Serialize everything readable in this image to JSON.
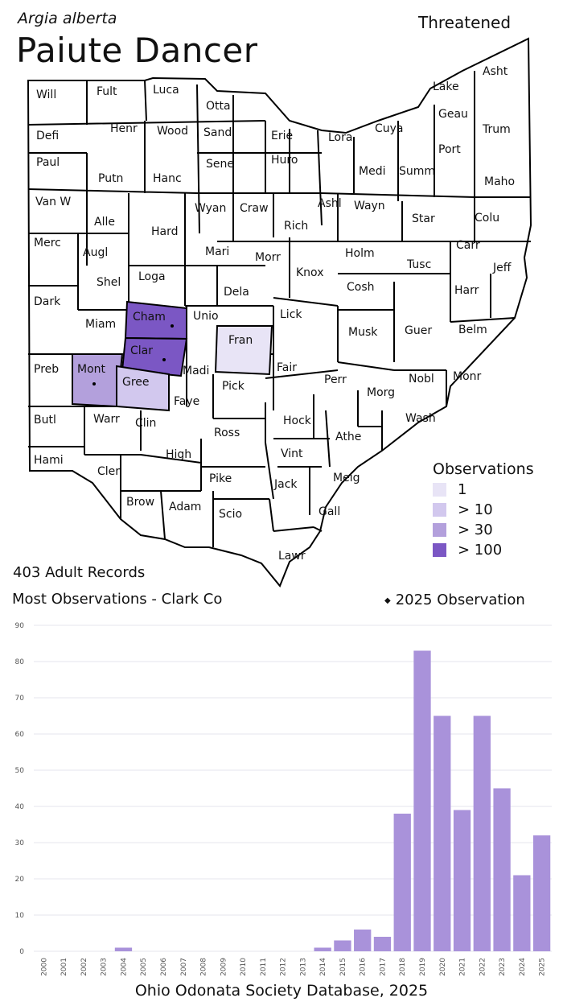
{
  "header": {
    "scientific_name": "Argia alberta",
    "common_name": "Paiute Dancer",
    "status": "Threatened"
  },
  "legend": {
    "title": "Observations",
    "items": [
      {
        "label": "1",
        "color": "#e8e4f6"
      },
      {
        "label": "> 10",
        "color": "#d2c8ee"
      },
      {
        "label": "> 30",
        "color": "#b3a0dc"
      },
      {
        "label": "> 100",
        "color": "#7b57c4"
      }
    ],
    "marker_label": "2025  Observation"
  },
  "summary": {
    "records": "403 Adult Records",
    "most": "Most Observations - Clark Co"
  },
  "counties": [
    {
      "name": "Will",
      "level": 0
    },
    {
      "name": "Fult",
      "level": 0
    },
    {
      "name": "Luca",
      "level": 0
    },
    {
      "name": "Otta",
      "level": 0
    },
    {
      "name": "Lake",
      "level": 0
    },
    {
      "name": "Asht",
      "level": 0
    },
    {
      "name": "Geau",
      "level": 0
    },
    {
      "name": "Defi",
      "level": 0
    },
    {
      "name": "Henr",
      "level": 0
    },
    {
      "name": "Wood",
      "level": 0
    },
    {
      "name": "Sand",
      "level": 0
    },
    {
      "name": "Erie",
      "level": 0
    },
    {
      "name": "Lora",
      "level": 0
    },
    {
      "name": "Cuya",
      "level": 0
    },
    {
      "name": "Trum",
      "level": 0
    },
    {
      "name": "Paul",
      "level": 0
    },
    {
      "name": "Putn",
      "level": 0
    },
    {
      "name": "Hanc",
      "level": 0
    },
    {
      "name": "Sene",
      "level": 0
    },
    {
      "name": "Huro",
      "level": 0
    },
    {
      "name": "Medi",
      "level": 0
    },
    {
      "name": "Summ",
      "level": 0
    },
    {
      "name": "Port",
      "level": 0
    },
    {
      "name": "Maho",
      "level": 0
    },
    {
      "name": "Van W",
      "level": 0
    },
    {
      "name": "Alle",
      "level": 0
    },
    {
      "name": "Hard",
      "level": 0
    },
    {
      "name": "Wyan",
      "level": 0
    },
    {
      "name": "Craw",
      "level": 0
    },
    {
      "name": "Rich",
      "level": 0
    },
    {
      "name": "Ashl",
      "level": 0
    },
    {
      "name": "Wayn",
      "level": 0
    },
    {
      "name": "Star",
      "level": 0
    },
    {
      "name": "Colu",
      "level": 0
    },
    {
      "name": "Merc",
      "level": 0
    },
    {
      "name": "Augl",
      "level": 0
    },
    {
      "name": "Mari",
      "level": 0
    },
    {
      "name": "Morr",
      "level": 0
    },
    {
      "name": "Holm",
      "level": 0
    },
    {
      "name": "Tusc",
      "level": 0
    },
    {
      "name": "Carr",
      "level": 0
    },
    {
      "name": "Jeff",
      "level": 0
    },
    {
      "name": "Shel",
      "level": 0
    },
    {
      "name": "Loga",
      "level": 0
    },
    {
      "name": "Dela",
      "level": 0
    },
    {
      "name": "Knox",
      "level": 0
    },
    {
      "name": "Cosh",
      "level": 0
    },
    {
      "name": "Harr",
      "level": 0
    },
    {
      "name": "Dark",
      "level": 0
    },
    {
      "name": "Miam",
      "level": 0
    },
    {
      "name": "Cham",
      "level": 4
    },
    {
      "name": "Unio",
      "level": 0
    },
    {
      "name": "Lick",
      "level": 0
    },
    {
      "name": "Musk",
      "level": 0
    },
    {
      "name": "Guer",
      "level": 0
    },
    {
      "name": "Belm",
      "level": 0
    },
    {
      "name": "Fran",
      "level": 1
    },
    {
      "name": "Clar",
      "level": 4
    },
    {
      "name": "Madi",
      "level": 0
    },
    {
      "name": "Fair",
      "level": 0
    },
    {
      "name": "Perr",
      "level": 0
    },
    {
      "name": "Nobl",
      "level": 0
    },
    {
      "name": "Monr",
      "level": 0
    },
    {
      "name": "Preb",
      "level": 0
    },
    {
      "name": "Mont",
      "level": 3
    },
    {
      "name": "Gree",
      "level": 2
    },
    {
      "name": "Faye",
      "level": 0
    },
    {
      "name": "Pick",
      "level": 0
    },
    {
      "name": "Morg",
      "level": 0
    },
    {
      "name": "Wash",
      "level": 0
    },
    {
      "name": "Butl",
      "level": 0
    },
    {
      "name": "Warr",
      "level": 0
    },
    {
      "name": "Clin",
      "level": 0
    },
    {
      "name": "Hock",
      "level": 0
    },
    {
      "name": "Ross",
      "level": 0
    },
    {
      "name": "Athe",
      "level": 0
    },
    {
      "name": "Hami",
      "level": 0
    },
    {
      "name": "Cler",
      "level": 0
    },
    {
      "name": "High",
      "level": 0
    },
    {
      "name": "Vint",
      "level": 0
    },
    {
      "name": "Pike",
      "level": 0
    },
    {
      "name": "Jack",
      "level": 0
    },
    {
      "name": "Meig",
      "level": 0
    },
    {
      "name": "Brow",
      "level": 0
    },
    {
      "name": "Adam",
      "level": 0
    },
    {
      "name": "Scio",
      "level": 0
    },
    {
      "name": "Gall",
      "level": 0
    },
    {
      "name": "Lawr",
      "level": 0
    }
  ],
  "observed_2025_counties": [
    "Cham",
    "Clar",
    "Mont"
  ],
  "chart_data": {
    "type": "bar",
    "categories": [
      "2000",
      "2001",
      "2002",
      "2003",
      "2004",
      "2005",
      "2006",
      "2007",
      "2008",
      "2009",
      "2010",
      "2011",
      "2012",
      "2013",
      "2014",
      "2015",
      "2016",
      "2017",
      "2018",
      "2019",
      "2020",
      "2021",
      "2022",
      "2023",
      "2024",
      "2025"
    ],
    "values": [
      0,
      0,
      0,
      0,
      1,
      0,
      0,
      0,
      0,
      0,
      0,
      0,
      0,
      0,
      1,
      3,
      6,
      4,
      38,
      83,
      65,
      39,
      65,
      45,
      21,
      32
    ],
    "ylim": [
      0,
      90
    ],
    "yticks": [
      0,
      10,
      20,
      30,
      40,
      50,
      60,
      70,
      80,
      90
    ],
    "bar_color": "#a992da",
    "grid": true
  },
  "footer": {
    "credit": "Ohio Odonata Society Database, 2025"
  }
}
